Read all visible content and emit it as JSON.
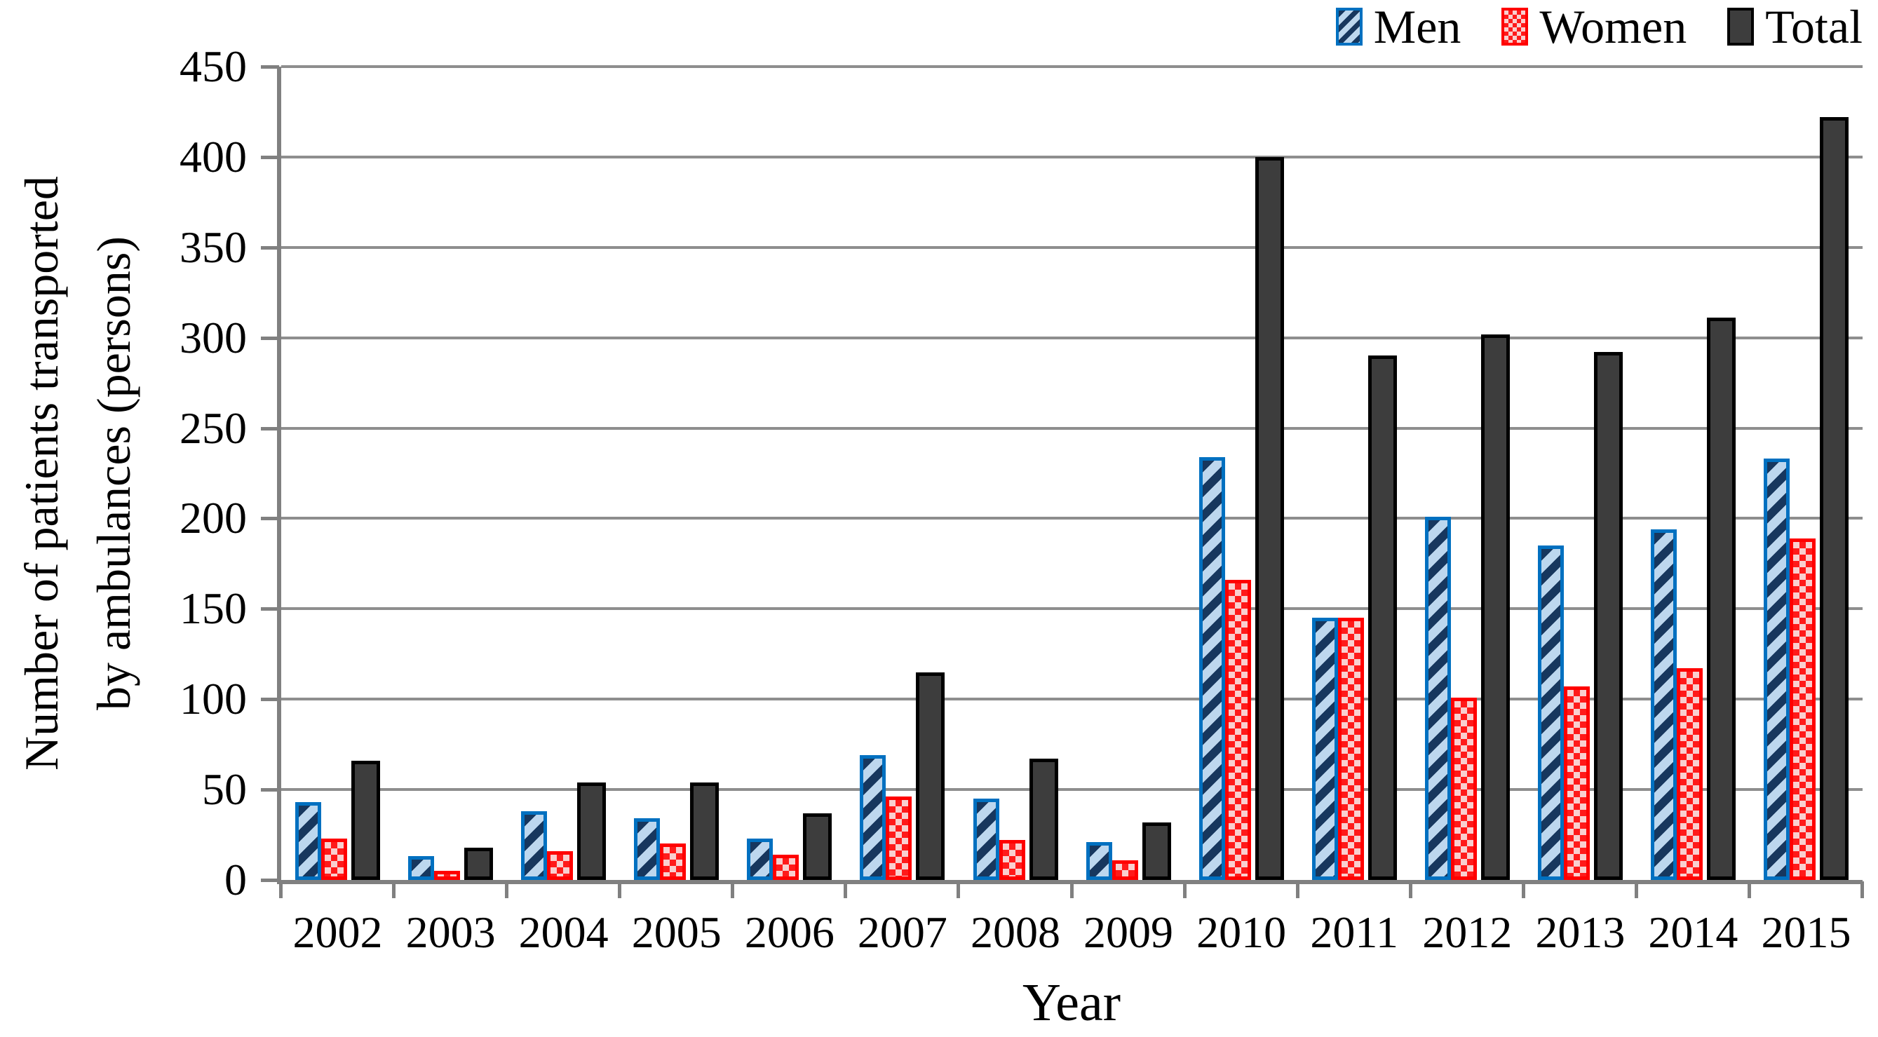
{
  "figure": {
    "y_axis_title_line1": "Number of patients transported",
    "y_axis_title_line2": "by ambulances (persons)",
    "x_axis_title": "Year"
  },
  "legend": {
    "items": [
      {
        "label": "Men",
        "series": "men"
      },
      {
        "label": "Women",
        "series": "women"
      },
      {
        "label": "Total",
        "series": "total"
      }
    ]
  },
  "chart_data": {
    "type": "bar",
    "title": "",
    "xlabel": "Year",
    "ylabel": "Number of patients transported by ambulances (persons)",
    "categories": [
      "2002",
      "2003",
      "2004",
      "2005",
      "2006",
      "2007",
      "2008",
      "2009",
      "2010",
      "2011",
      "2012",
      "2013",
      "2014",
      "2015"
    ],
    "series": [
      {
        "name": "Men",
        "style": "blue-diagonal-hatch",
        "values": [
          43,
          13,
          38,
          34,
          23,
          69,
          45,
          21,
          234,
          145,
          201,
          185,
          194,
          233
        ]
      },
      {
        "name": "Women",
        "style": "red-checker",
        "values": [
          23,
          5,
          16,
          20,
          14,
          46,
          22,
          11,
          166,
          145,
          101,
          107,
          117,
          189
        ]
      },
      {
        "name": "Total",
        "style": "dark-solid",
        "values": [
          66,
          18,
          54,
          54,
          37,
          115,
          67,
          32,
          400,
          290,
          302,
          292,
          311,
          422
        ]
      }
    ],
    "ylim": [
      0,
      450
    ],
    "yticks": [
      0,
      50,
      100,
      150,
      200,
      250,
      300,
      350,
      400,
      450
    ],
    "grid": true,
    "legend_position": "top-right"
  },
  "colors": {
    "men_border": "#0070C0",
    "men_fill": "#BDD7EE",
    "men_stripe": "#17375E",
    "women_border": "#FF0000",
    "women_fill": "#F9CFCF",
    "women_check": "#FF1A1A",
    "total_fill": "#3D3D3D",
    "total_border": "#000000",
    "gridline": "#8E8E8E",
    "axis": "#808080",
    "text": "#000000"
  }
}
